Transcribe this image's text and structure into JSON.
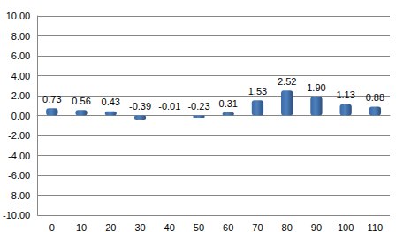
{
  "chart_data": {
    "type": "bar",
    "categories": [
      "0",
      "10",
      "20",
      "30",
      "40",
      "50",
      "60",
      "70",
      "80",
      "90",
      "100",
      "110"
    ],
    "values": [
      0.73,
      0.56,
      0.43,
      -0.39,
      -0.01,
      -0.23,
      0.31,
      1.53,
      2.52,
      1.9,
      1.13,
      0.88
    ],
    "value_labels": [
      "0.73",
      "0.56",
      "0.43",
      "-0.39",
      "-0.01",
      "-0.23",
      "0.31",
      "1.53",
      "2.52",
      "1.90",
      "1.13",
      "0.88"
    ],
    "color": "#4f81bd",
    "ylim": [
      -10,
      10
    ],
    "yticks": [
      {
        "value": -10,
        "label": "-10.00"
      },
      {
        "value": -8,
        "label": "-8.00"
      },
      {
        "value": -6,
        "label": "-6.00"
      },
      {
        "value": -4,
        "label": "-4.00"
      },
      {
        "value": -2,
        "label": "-2.00"
      },
      {
        "value": 0,
        "label": "0.00"
      },
      {
        "value": 2,
        "label": "2.00"
      },
      {
        "value": 4,
        "label": "4.00"
      },
      {
        "value": 6,
        "label": "6.00"
      },
      {
        "value": 8,
        "label": "8.00"
      },
      {
        "value": 10,
        "label": "10.00"
      }
    ],
    "grid": true,
    "data_labels": true
  }
}
